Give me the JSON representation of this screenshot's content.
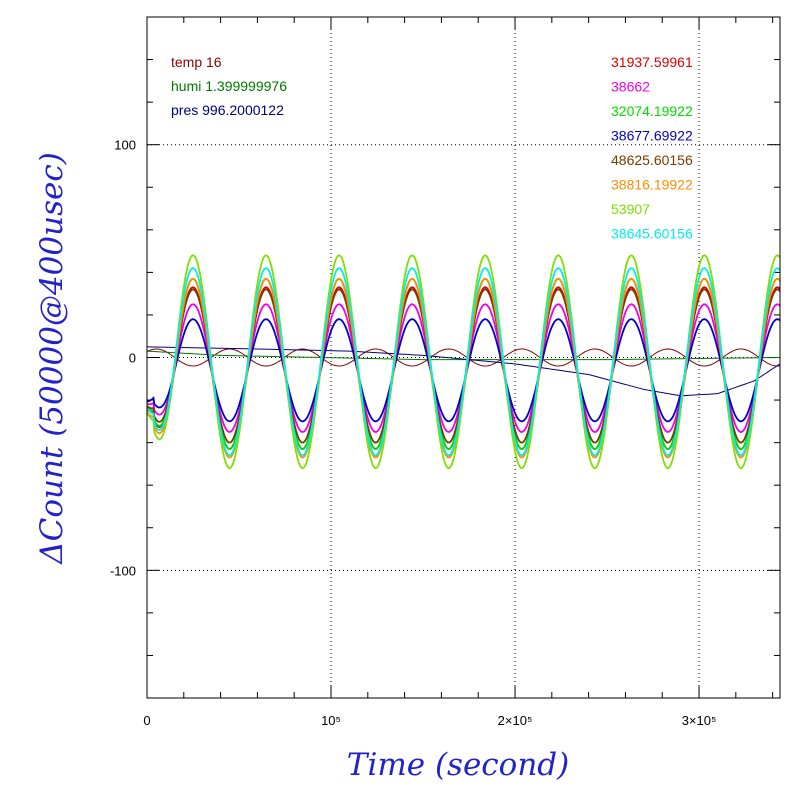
{
  "chart_data": {
    "type": "line",
    "xlabel": "Time (second)",
    "ylabel": "ΔCount (50000@400usec)",
    "xlim": [
      0,
      344000
    ],
    "ylim": [
      -160,
      160
    ],
    "x_ticks": [
      {
        "value": 0,
        "label": "0"
      },
      {
        "value": 100000,
        "label": "10⁵"
      },
      {
        "value": 200000,
        "label": "2×10⁵"
      },
      {
        "value": 300000,
        "label": "3×10⁵"
      }
    ],
    "y_ticks": [
      {
        "value": 100,
        "label": "100"
      },
      {
        "value": 0,
        "label": "0"
      },
      {
        "value": -100,
        "label": "-100"
      }
    ],
    "grid": true,
    "legend_left": [
      {
        "name": "temp",
        "value": "16",
        "color": "#8b0000"
      },
      {
        "name": "humi",
        "value": "1.399999976",
        "color": "#007a00"
      },
      {
        "name": "pres",
        "value": "996.2000122",
        "color": "#00007a"
      }
    ],
    "legend_right": [
      {
        "value": "31937.59961",
        "color": "#dd0000"
      },
      {
        "value": "38662",
        "color": "#ee00ee"
      },
      {
        "value": "32074.19922",
        "color": "#00dd00"
      },
      {
        "value": "38677.69922",
        "color": "#0000cc"
      },
      {
        "value": "48625.60156",
        "color": "#7a3a00"
      },
      {
        "value": "38816.19922",
        "color": "#ff8c00"
      },
      {
        "value": "53907",
        "color": "#7fe000"
      },
      {
        "value": "38645.60156",
        "color": "#00eeee"
      }
    ],
    "oscillation": {
      "period_seconds": 39700,
      "first_peak_seconds": 25000
    },
    "series": [
      {
        "color": "#dd0000",
        "amplitude": 38,
        "offset": -5
      },
      {
        "color": "#ee00ee",
        "amplitude": 30,
        "offset": -5
      },
      {
        "color": "#00dd00",
        "amplitude": 40,
        "offset": -3
      },
      {
        "color": "#0000cc",
        "amplitude": 24,
        "offset": -6
      },
      {
        "color": "#7a3a00",
        "amplitude": 36,
        "offset": -4
      },
      {
        "color": "#ff8c00",
        "amplitude": 42,
        "offset": -5
      },
      {
        "color": "#7fe000",
        "amplitude": 50,
        "offset": -2
      },
      {
        "color": "#00eeee",
        "amplitude": 44,
        "offset": -2
      }
    ],
    "environment_series": [
      {
        "name": "temp",
        "color": "#8b0000",
        "kind": "sine",
        "amplitude": 4,
        "offset": 0
      },
      {
        "name": "humi",
        "color": "#007a00",
        "kind": "flat",
        "points": [
          [
            0,
            3
          ],
          [
            40000,
            1
          ],
          [
            150000,
            -1
          ],
          [
            250000,
            -1
          ],
          [
            344000,
            0
          ]
        ]
      },
      {
        "name": "pres",
        "color": "#00007a",
        "kind": "drift",
        "points": [
          [
            0,
            5
          ],
          [
            60000,
            4
          ],
          [
            110000,
            3
          ],
          [
            150000,
            1
          ],
          [
            200000,
            -3
          ],
          [
            240000,
            -8
          ],
          [
            270000,
            -15
          ],
          [
            290000,
            -18
          ],
          [
            310000,
            -17
          ],
          [
            330000,
            -11
          ],
          [
            344000,
            -3
          ]
        ]
      }
    ]
  }
}
